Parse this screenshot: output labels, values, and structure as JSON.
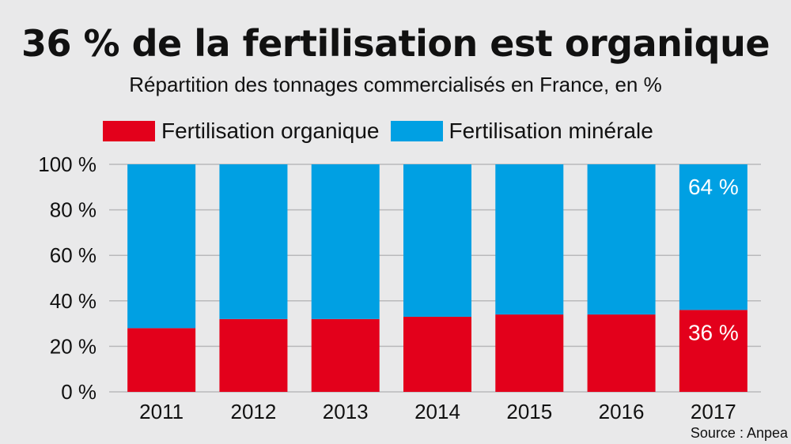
{
  "chart_data": {
    "type": "bar",
    "stacked": true,
    "title": "36 % de la fertilisation est organique",
    "subtitle": "Répartition des tonnages commercialisés en France, en %",
    "categories": [
      "2011",
      "2012",
      "2013",
      "2014",
      "2015",
      "2016",
      "2017"
    ],
    "series": [
      {
        "name": "Fertilisation organique",
        "color": "#e3001b",
        "values": [
          28,
          32,
          32,
          33,
          34,
          34,
          36
        ]
      },
      {
        "name": "Fertilisation minérale",
        "color": "#00a0e3",
        "values": [
          72,
          68,
          68,
          67,
          66,
          66,
          64
        ]
      }
    ],
    "ylim": [
      0,
      100
    ],
    "yticks": [
      "0 %",
      "20 %",
      "40 %",
      "60 %",
      "80 %",
      "100 %"
    ],
    "ytick_values": [
      0,
      20,
      40,
      60,
      80,
      100
    ],
    "grid": true,
    "legend": "top-left",
    "annotations": [
      {
        "category": "2017",
        "series": "Fertilisation minérale",
        "text": "64 %"
      },
      {
        "category": "2017",
        "series": "Fertilisation organique",
        "text": "36 %"
      }
    ],
    "source": "Source : Anpea"
  }
}
